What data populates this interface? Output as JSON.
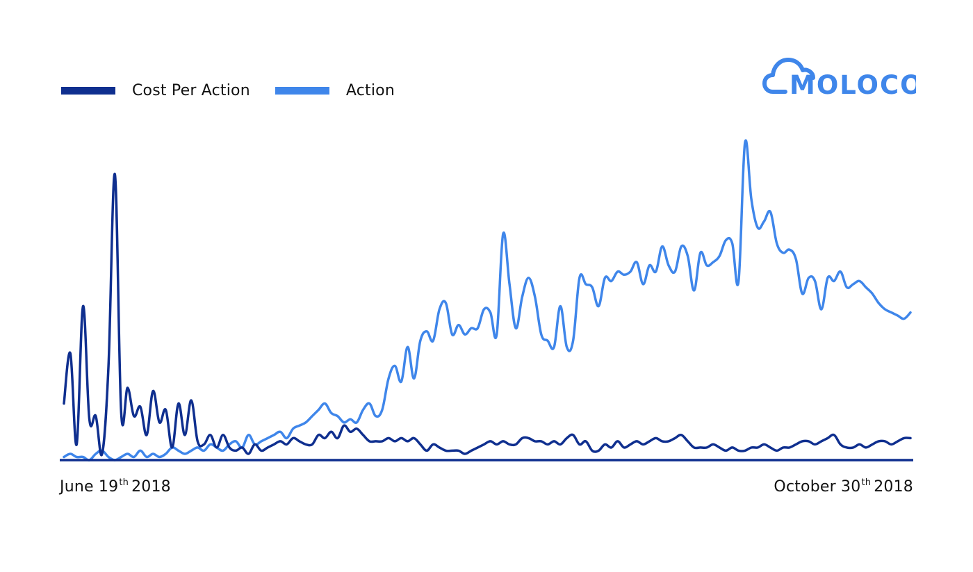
{
  "legend": {
    "cpa_label": "Cost Per Action",
    "action_label": "Action"
  },
  "logo": {
    "text": "MOLOCO",
    "icon": "cloud-icon"
  },
  "date_labels": {
    "start": {
      "month_day": "June 19",
      "suffix": "th",
      "year": "2018"
    },
    "end": {
      "month_day": "October 30",
      "suffix": "th",
      "year": "2018"
    }
  },
  "colors": {
    "cost_per_action": "#0f2f8f",
    "action": "#3f86ea",
    "baseline": "#0f2f8f",
    "logo": "#3f86ea"
  },
  "chart_data": {
    "type": "line",
    "x_start": "2018-06-19",
    "x_end": "2018-10-30",
    "grid": false,
    "legend_position": "top-left",
    "x": [
      "06-19",
      "06-20",
      "06-21",
      "06-22",
      "06-23",
      "06-24",
      "06-25",
      "06-26",
      "06-27",
      "06-28",
      "06-29",
      "06-30",
      "07-01",
      "07-02",
      "07-03",
      "07-04",
      "07-05",
      "07-06",
      "07-07",
      "07-08",
      "07-09",
      "07-10",
      "07-11",
      "07-12",
      "07-13",
      "07-14",
      "07-15",
      "07-16",
      "07-17",
      "07-18",
      "07-19",
      "07-20",
      "07-21",
      "07-22",
      "07-23",
      "07-24",
      "07-25",
      "07-26",
      "07-27",
      "07-28",
      "07-29",
      "07-30",
      "07-31",
      "08-01",
      "08-02",
      "08-03",
      "08-04",
      "08-05",
      "08-06",
      "08-07",
      "08-08",
      "08-09",
      "08-10",
      "08-11",
      "08-12",
      "08-13",
      "08-14",
      "08-15",
      "08-16",
      "08-17",
      "08-18",
      "08-19",
      "08-20",
      "08-21",
      "08-22",
      "08-23",
      "08-24",
      "08-25",
      "08-26",
      "08-27",
      "08-28",
      "08-29",
      "08-30",
      "08-31",
      "09-01",
      "09-02",
      "09-03",
      "09-04",
      "09-05",
      "09-06",
      "09-07",
      "09-08",
      "09-09",
      "09-10",
      "09-11",
      "09-12",
      "09-13",
      "09-14",
      "09-15",
      "09-16",
      "09-17",
      "09-18",
      "09-19",
      "09-20",
      "09-21",
      "09-22",
      "09-23",
      "09-24",
      "09-25",
      "09-26",
      "09-27",
      "09-28",
      "09-29",
      "09-30",
      "10-01",
      "10-02",
      "10-03",
      "10-04",
      "10-05",
      "10-06",
      "10-07",
      "10-08",
      "10-09",
      "10-10",
      "10-11",
      "10-12",
      "10-13",
      "10-14",
      "10-15",
      "10-16",
      "10-17",
      "10-18",
      "10-19",
      "10-20",
      "10-21",
      "10-22",
      "10-23",
      "10-24",
      "10-25",
      "10-26",
      "10-27",
      "10-28",
      "10-29",
      "10-30"
    ],
    "ylim": [
      0,
      100
    ],
    "series": [
      {
        "name": "Cost Per Action",
        "values": [
          18,
          34,
          5,
          49,
          13,
          14,
          2,
          30,
          91,
          15,
          23,
          14,
          17,
          8,
          22,
          12,
          16,
          4,
          18,
          8,
          19,
          6,
          5,
          8,
          4,
          8,
          4,
          3,
          4,
          2,
          5,
          3,
          4,
          5,
          6,
          5,
          7,
          6,
          5,
          5,
          8,
          7,
          9,
          7,
          11,
          9,
          10,
          8,
          6,
          6,
          6,
          7,
          6,
          7,
          6,
          7,
          5,
          3,
          5,
          4,
          3,
          3,
          3,
          2,
          3,
          4,
          5,
          6,
          5,
          6,
          5,
          5,
          7,
          7,
          6,
          6,
          5,
          6,
          5,
          7,
          8,
          5,
          6,
          3,
          3,
          5,
          4,
          6,
          4,
          5,
          6,
          5,
          6,
          7,
          6,
          6,
          7,
          8,
          6,
          4,
          4,
          4,
          5,
          4,
          3,
          4,
          3,
          3,
          4,
          4,
          5,
          4,
          3,
          4,
          4,
          5,
          6,
          6,
          5,
          6,
          7,
          8,
          5,
          4,
          4,
          5,
          4,
          5,
          6,
          6,
          5,
          6,
          7,
          7
        ]
      },
      {
        "name": "Action",
        "values": [
          1,
          2,
          1,
          1,
          0,
          2,
          3,
          1,
          0,
          1,
          2,
          1,
          3,
          1,
          2,
          1,
          2,
          4,
          3,
          2,
          3,
          4,
          3,
          5,
          4,
          3,
          5,
          6,
          4,
          8,
          5,
          6,
          7,
          8,
          9,
          7,
          10,
          11,
          12,
          14,
          16,
          18,
          15,
          14,
          12,
          13,
          12,
          16,
          18,
          14,
          16,
          26,
          30,
          25,
          36,
          26,
          38,
          41,
          38,
          48,
          50,
          40,
          43,
          40,
          42,
          42,
          48,
          47,
          40,
          72,
          56,
          42,
          52,
          58,
          52,
          40,
          38,
          36,
          49,
          36,
          38,
          58,
          56,
          55,
          49,
          58,
          57,
          60,
          59,
          60,
          63,
          56,
          62,
          60,
          68,
          62,
          60,
          68,
          65,
          54,
          66,
          62,
          63,
          65,
          70,
          69,
          57,
          101,
          83,
          74,
          76,
          79,
          69,
          66,
          67,
          64,
          53,
          58,
          57,
          48,
          58,
          57,
          60,
          55,
          56,
          57,
          55,
          53,
          50,
          48,
          47,
          46,
          45,
          47
        ]
      }
    ]
  }
}
